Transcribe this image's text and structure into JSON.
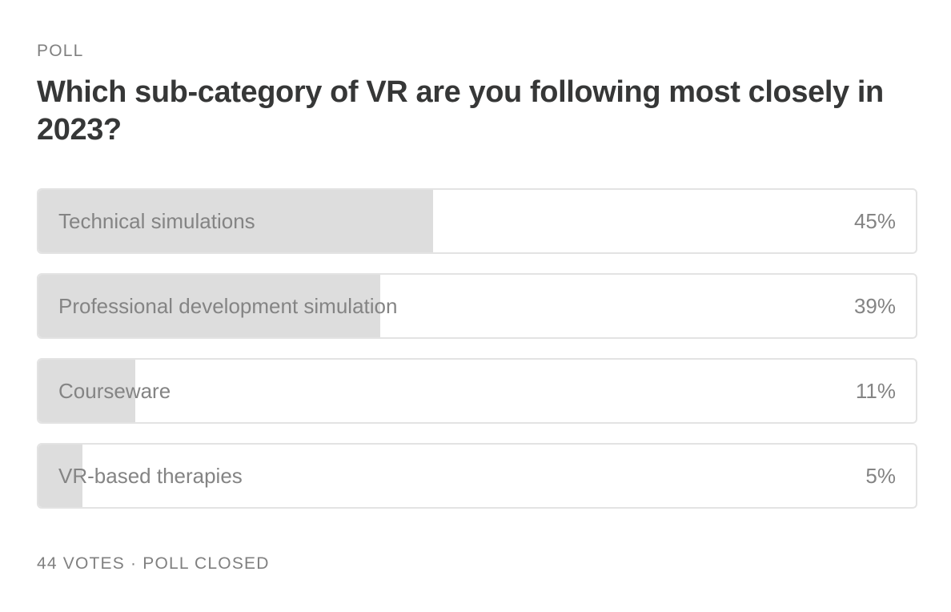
{
  "poll": {
    "eyebrow": "POLL",
    "question": "Which sub-category of VR are you following most closely in 2023?",
    "options": [
      {
        "label": "Technical simulations",
        "percent_text": "45%",
        "share": 0.45
      },
      {
        "label": "Professional development simulation",
        "percent_text": "39%",
        "share": 0.39
      },
      {
        "label": "Courseware",
        "percent_text": "11%",
        "share": 0.11
      },
      {
        "label": "VR-based therapies",
        "percent_text": "5%",
        "share": 0.05
      }
    ],
    "votes_text": "44 VOTES",
    "separator": "·",
    "status_text": "POLL CLOSED"
  },
  "colors": {
    "fill": "#dddddd",
    "border": "#e3e3e3",
    "muted_text": "#848484",
    "title_text": "#363737"
  }
}
